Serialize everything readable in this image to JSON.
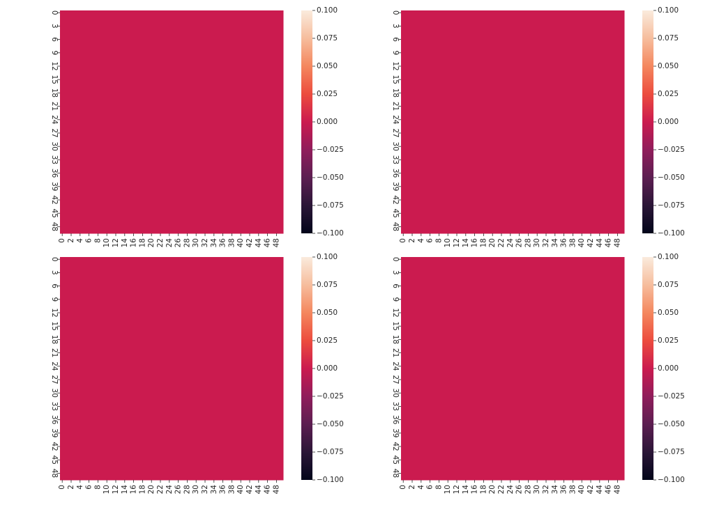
{
  "chart_data": [
    {
      "type": "heatmap",
      "title": "",
      "xlabel": "",
      "ylabel": "",
      "rows": 50,
      "cols": 50,
      "value": 0.0,
      "x_tick_labels": [
        "0",
        "2",
        "4",
        "6",
        "8",
        "10",
        "12",
        "14",
        "16",
        "18",
        "20",
        "22",
        "24",
        "26",
        "28",
        "30",
        "32",
        "34",
        "36",
        "38",
        "40",
        "42",
        "44",
        "46",
        "48"
      ],
      "y_tick_labels": [
        "0",
        "3",
        "6",
        "9",
        "12",
        "15",
        "18",
        "21",
        "24",
        "27",
        "30",
        "33",
        "36",
        "39",
        "42",
        "45",
        "48"
      ],
      "colorbar": {
        "vmin": -0.1,
        "vmax": 0.1,
        "tick_labels": [
          "0.100",
          "0.075",
          "0.050",
          "0.025",
          "0.000",
          "−0.025",
          "−0.050",
          "−0.075",
          "−0.100"
        ],
        "colormap": "rocket"
      },
      "cell_color": "#cb1b4f"
    },
    {
      "type": "heatmap",
      "title": "",
      "xlabel": "",
      "ylabel": "",
      "rows": 50,
      "cols": 50,
      "value": 0.0,
      "x_tick_labels": [
        "0",
        "2",
        "4",
        "6",
        "8",
        "10",
        "12",
        "14",
        "16",
        "18",
        "20",
        "22",
        "24",
        "26",
        "28",
        "30",
        "32",
        "34",
        "36",
        "38",
        "40",
        "42",
        "44",
        "46",
        "48"
      ],
      "y_tick_labels": [
        "0",
        "3",
        "6",
        "9",
        "12",
        "15",
        "18",
        "21",
        "24",
        "27",
        "30",
        "33",
        "36",
        "39",
        "42",
        "45",
        "48"
      ],
      "colorbar": {
        "vmin": -0.1,
        "vmax": 0.1,
        "tick_labels": [
          "0.100",
          "0.075",
          "0.050",
          "0.025",
          "0.000",
          "−0.025",
          "−0.050",
          "−0.075",
          "−0.100"
        ],
        "colormap": "rocket"
      },
      "cell_color": "#cb1b4f"
    },
    {
      "type": "heatmap",
      "title": "",
      "xlabel": "",
      "ylabel": "",
      "rows": 50,
      "cols": 50,
      "value": 0.0,
      "x_tick_labels": [
        "0",
        "2",
        "4",
        "6",
        "8",
        "10",
        "12",
        "14",
        "16",
        "18",
        "20",
        "22",
        "24",
        "26",
        "28",
        "30",
        "32",
        "34",
        "36",
        "38",
        "40",
        "42",
        "44",
        "46",
        "48"
      ],
      "y_tick_labels": [
        "0",
        "3",
        "6",
        "9",
        "12",
        "15",
        "18",
        "21",
        "24",
        "27",
        "30",
        "33",
        "36",
        "39",
        "42",
        "45",
        "48"
      ],
      "colorbar": {
        "vmin": -0.1,
        "vmax": 0.1,
        "tick_labels": [
          "0.100",
          "0.075",
          "0.050",
          "0.025",
          "0.000",
          "−0.025",
          "−0.050",
          "−0.075",
          "−0.100"
        ],
        "colormap": "rocket"
      },
      "cell_color": "#cb1b4f"
    },
    {
      "type": "heatmap",
      "title": "",
      "xlabel": "",
      "ylabel": "",
      "rows": 50,
      "cols": 50,
      "value": 0.0,
      "x_tick_labels": [
        "0",
        "2",
        "4",
        "6",
        "8",
        "10",
        "12",
        "14",
        "16",
        "18",
        "20",
        "22",
        "24",
        "26",
        "28",
        "30",
        "32",
        "34",
        "36",
        "38",
        "40",
        "42",
        "44",
        "46",
        "48"
      ],
      "y_tick_labels": [
        "0",
        "3",
        "6",
        "9",
        "12",
        "15",
        "18",
        "21",
        "24",
        "27",
        "30",
        "33",
        "36",
        "39",
        "42",
        "45",
        "48"
      ],
      "colorbar": {
        "vmin": -0.1,
        "vmax": 0.1,
        "tick_labels": [
          "0.100",
          "0.075",
          "0.050",
          "0.025",
          "0.000",
          "−0.025",
          "−0.050",
          "−0.075",
          "−0.100"
        ],
        "colormap": "rocket"
      },
      "cell_color": "#cb1b4f"
    }
  ]
}
